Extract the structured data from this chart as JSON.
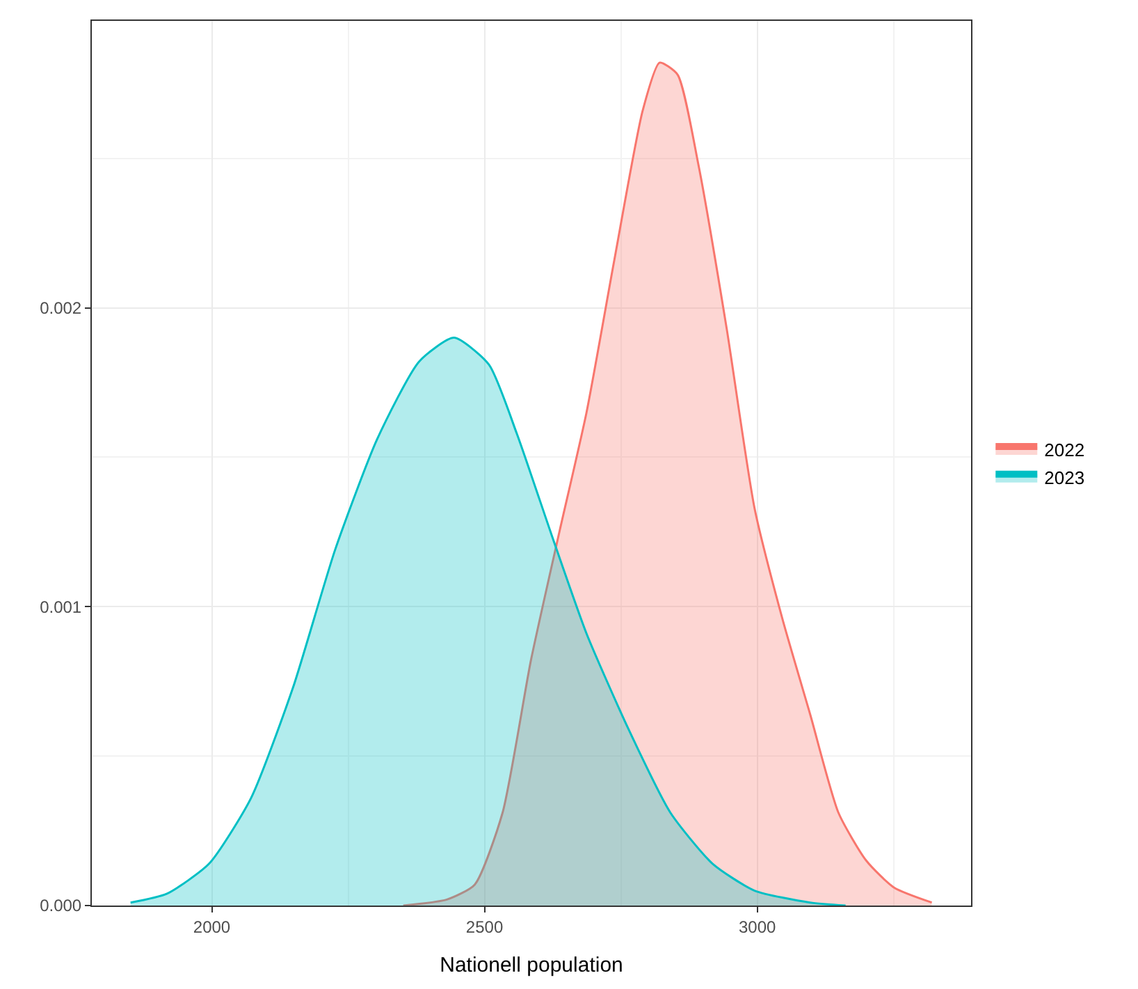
{
  "chart_data": {
    "type": "area",
    "xlabel": "Nationell population",
    "xlim": [
      1780,
      3392
    ],
    "ylim": [
      0,
      0.00296
    ],
    "xticks": [
      2000,
      2500,
      3000
    ],
    "yticks": [
      {
        "value": 0,
        "label": "0.000"
      },
      {
        "value": 0.001,
        "label": "0.001"
      },
      {
        "value": 0.002,
        "label": "0.002"
      }
    ],
    "grid": true,
    "legend": "right",
    "series": [
      {
        "name": "2022",
        "color": "#f8766d",
        "x": [
          2351,
          2431,
          2482,
          2533,
          2585,
          2636,
          2687,
          2738,
          2790,
          2821,
          2854,
          2892,
          2944,
          2995,
          3046,
          3097,
          3149,
          3200,
          3251,
          3320
        ],
        "values": [
          0,
          2e-05,
          7e-05,
          0.00031,
          0.00082,
          0.00124,
          0.00165,
          0.00216,
          0.00266,
          0.00282,
          0.00278,
          0.00248,
          0.00193,
          0.00133,
          0.00096,
          0.00064,
          0.00031,
          0.00015,
          6e-05,
          1e-05
        ]
      },
      {
        "name": "2023",
        "color": "#00bfc4",
        "x": [
          1851,
          1918,
          1995,
          2072,
          2149,
          2226,
          2303,
          2380,
          2444,
          2508,
          2559,
          2623,
          2687,
          2764,
          2841,
          2918,
          2995,
          3097,
          3162
        ],
        "values": [
          1e-05,
          4e-05,
          0.00014,
          0.00036,
          0.00073,
          0.00119,
          0.00156,
          0.00182,
          0.0019,
          0.00181,
          0.00158,
          0.00124,
          0.00091,
          0.00059,
          0.00031,
          0.00014,
          5e-05,
          1e-05,
          0
        ]
      }
    ]
  }
}
